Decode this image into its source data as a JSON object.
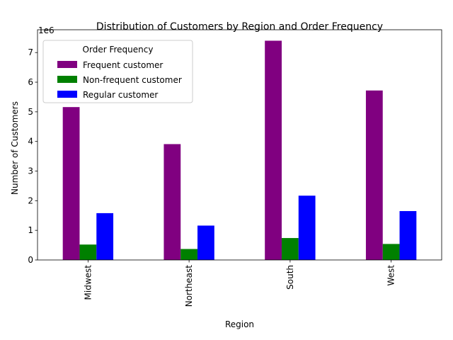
{
  "chart_data": {
    "type": "bar",
    "title": "Distribution of Customers by Region and Order Frequency",
    "xlabel": "Region",
    "ylabel": "Number of Customers",
    "y_offset_text": "1e6",
    "categories": [
      "Midwest",
      "Northeast",
      "South",
      "West"
    ],
    "ylim": [
      0,
      7.77
    ],
    "yticks": [
      0,
      1,
      2,
      3,
      4,
      5,
      6,
      7
    ],
    "ytick_labels": [
      "0",
      "1",
      "2",
      "3",
      "4",
      "5",
      "6",
      "7"
    ],
    "grid": false,
    "legend": {
      "title": "Order Frequency",
      "placement": "upper-left"
    },
    "series": [
      {
        "name": "Frequent customer",
        "color": "#800080",
        "values": [
          5.16,
          3.91,
          7.4,
          5.72
        ]
      },
      {
        "name": "Non-frequent customer",
        "color": "#008000",
        "values": [
          0.52,
          0.37,
          0.74,
          0.54
        ]
      },
      {
        "name": "Regular customer",
        "color": "#0000ff",
        "values": [
          1.58,
          1.16,
          2.17,
          1.65
        ]
      }
    ]
  }
}
